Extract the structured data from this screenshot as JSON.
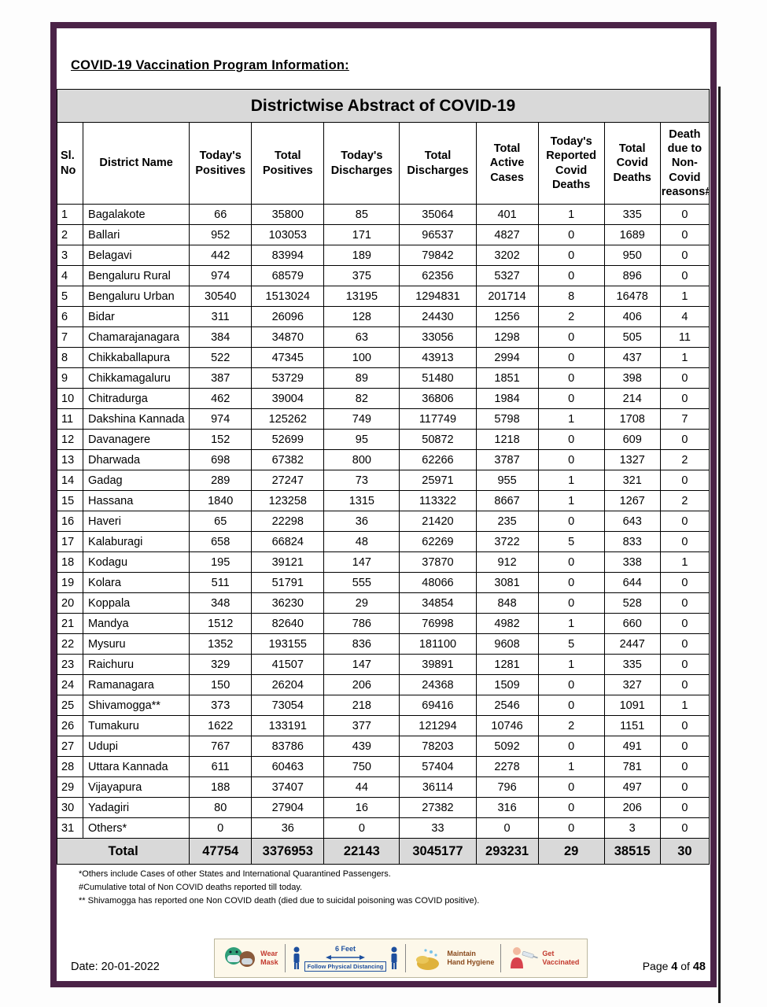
{
  "document": {
    "heading": "COVID-19 Vaccination Program Information:",
    "date": "Date: 20-01-2022",
    "page_label": "Page",
    "page_number": "4",
    "of_label": "of",
    "page_total": "48"
  },
  "table": {
    "title": "Districtwise Abstract of COVID-19",
    "columns": [
      "Sl.\nNo",
      "District Name",
      "Today's Positives",
      "Total Positives",
      "Today's Discharges",
      "Total Discharges",
      "Total Active Cases",
      "Today's Reported Covid Deaths",
      "Total Covid Deaths",
      "Death due to Non-Covid reasons#"
    ],
    "rows": [
      [
        "1",
        "Bagalakote",
        "66",
        "35800",
        "85",
        "35064",
        "401",
        "1",
        "335",
        "0"
      ],
      [
        "2",
        "Ballari",
        "952",
        "103053",
        "171",
        "96537",
        "4827",
        "0",
        "1689",
        "0"
      ],
      [
        "3",
        "Belagavi",
        "442",
        "83994",
        "189",
        "79842",
        "3202",
        "0",
        "950",
        "0"
      ],
      [
        "4",
        "Bengaluru Rural",
        "974",
        "68579",
        "375",
        "62356",
        "5327",
        "0",
        "896",
        "0"
      ],
      [
        "5",
        "Bengaluru Urban",
        "30540",
        "1513024",
        "13195",
        "1294831",
        "201714",
        "8",
        "16478",
        "1"
      ],
      [
        "6",
        "Bidar",
        "311",
        "26096",
        "128",
        "24430",
        "1256",
        "2",
        "406",
        "4"
      ],
      [
        "7",
        "Chamarajanagara",
        "384",
        "34870",
        "63",
        "33056",
        "1298",
        "0",
        "505",
        "11"
      ],
      [
        "8",
        "Chikkaballapura",
        "522",
        "47345",
        "100",
        "43913",
        "2994",
        "0",
        "437",
        "1"
      ],
      [
        "9",
        "Chikkamagaluru",
        "387",
        "53729",
        "89",
        "51480",
        "1851",
        "0",
        "398",
        "0"
      ],
      [
        "10",
        "Chitradurga",
        "462",
        "39004",
        "82",
        "36806",
        "1984",
        "0",
        "214",
        "0"
      ],
      [
        "11",
        "Dakshina Kannada",
        "974",
        "125262",
        "749",
        "117749",
        "5798",
        "1",
        "1708",
        "7"
      ],
      [
        "12",
        "Davanagere",
        "152",
        "52699",
        "95",
        "50872",
        "1218",
        "0",
        "609",
        "0"
      ],
      [
        "13",
        "Dharwada",
        "698",
        "67382",
        "800",
        "62266",
        "3787",
        "0",
        "1327",
        "2"
      ],
      [
        "14",
        "Gadag",
        "289",
        "27247",
        "73",
        "25971",
        "955",
        "1",
        "321",
        "0"
      ],
      [
        "15",
        "Hassana",
        "1840",
        "123258",
        "1315",
        "113322",
        "8667",
        "1",
        "1267",
        "2"
      ],
      [
        "16",
        "Haveri",
        "65",
        "22298",
        "36",
        "21420",
        "235",
        "0",
        "643",
        "0"
      ],
      [
        "17",
        "Kalaburagi",
        "658",
        "66824",
        "48",
        "62269",
        "3722",
        "5",
        "833",
        "0"
      ],
      [
        "18",
        "Kodagu",
        "195",
        "39121",
        "147",
        "37870",
        "912",
        "0",
        "338",
        "1"
      ],
      [
        "19",
        "Kolara",
        "511",
        "51791",
        "555",
        "48066",
        "3081",
        "0",
        "644",
        "0"
      ],
      [
        "20",
        "Koppala",
        "348",
        "36230",
        "29",
        "34854",
        "848",
        "0",
        "528",
        "0"
      ],
      [
        "21",
        "Mandya",
        "1512",
        "82640",
        "786",
        "76998",
        "4982",
        "1",
        "660",
        "0"
      ],
      [
        "22",
        "Mysuru",
        "1352",
        "193155",
        "836",
        "181100",
        "9608",
        "5",
        "2447",
        "0"
      ],
      [
        "23",
        "Raichuru",
        "329",
        "41507",
        "147",
        "39891",
        "1281",
        "1",
        "335",
        "0"
      ],
      [
        "24",
        "Ramanagara",
        "150",
        "26204",
        "206",
        "24368",
        "1509",
        "0",
        "327",
        "0"
      ],
      [
        "25",
        "Shivamogga**",
        "373",
        "73054",
        "218",
        "69416",
        "2546",
        "0",
        "1091",
        "1"
      ],
      [
        "26",
        "Tumakuru",
        "1622",
        "133191",
        "377",
        "121294",
        "10746",
        "2",
        "1151",
        "0"
      ],
      [
        "27",
        "Udupi",
        "767",
        "83786",
        "439",
        "78203",
        "5092",
        "0",
        "491",
        "0"
      ],
      [
        "28",
        "Uttara Kannada",
        "611",
        "60463",
        "750",
        "57404",
        "2278",
        "1",
        "781",
        "0"
      ],
      [
        "29",
        "Vijayapura",
        "188",
        "37407",
        "44",
        "36114",
        "796",
        "0",
        "497",
        "0"
      ],
      [
        "30",
        "Yadagiri",
        "80",
        "27904",
        "16",
        "27382",
        "316",
        "0",
        "206",
        "0"
      ],
      [
        "31",
        "Others*",
        "0",
        "36",
        "0",
        "33",
        "0",
        "0",
        "3",
        "0"
      ]
    ],
    "total_row": {
      "label": "Total",
      "values": [
        "47754",
        "3376953",
        "22143",
        "3045177",
        "293231",
        "29",
        "38515",
        "30"
      ]
    }
  },
  "footnotes": [
    "*Others include Cases of other States and International Quarantined Passengers.",
    "#Cumulative total of Non COVID deaths reported till today.",
    "** Shivamogga has reported one Non COVID death (died due to suicidal poisoning was COVID positive)."
  ],
  "banner": {
    "wear_mask": "Wear\nMask",
    "six_feet": "6 Feet",
    "distancing": "Follow Physical Distancing",
    "hand_hygiene": "Maintain\nHand Hygiene",
    "vaccinated": "Get\nVaccinated"
  },
  "colors": {
    "frame_border": "#4b2347",
    "band_gray": "#d9d9d9",
    "banner_red": "#c3392e",
    "banner_blue": "#1d4f9e",
    "banner_maroon": "#8a4a1d"
  }
}
